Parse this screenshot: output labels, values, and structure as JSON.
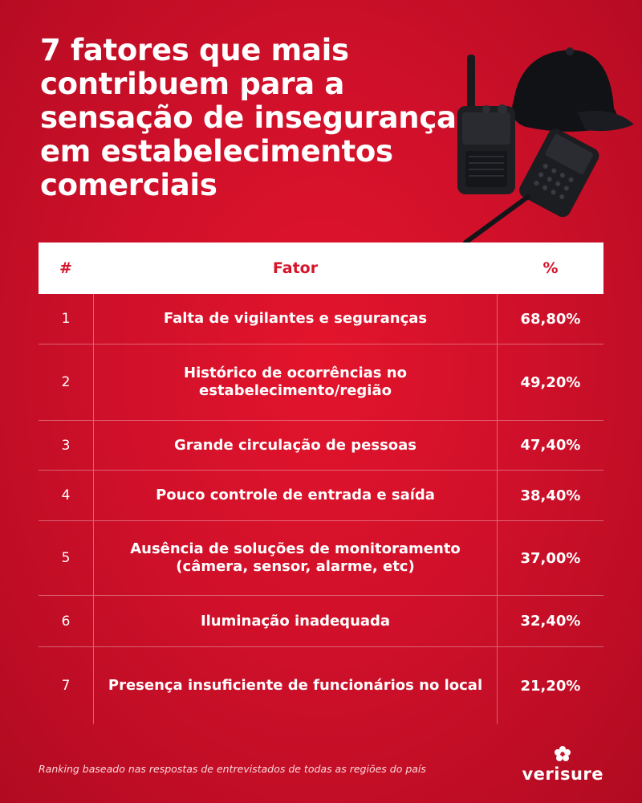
{
  "title": "7 fatores que mais contribuem para a sensação de insegurança em estabelecimentos comerciais",
  "table": {
    "headers": {
      "rank": "#",
      "factor": "Fator",
      "pct": "%"
    }
  },
  "chart_data": {
    "type": "table",
    "title": "7 fatores que mais contribuem para a sensação de insegurança em estabelecimentos comerciais",
    "columns": [
      "#",
      "Fator",
      "%"
    ],
    "rows": [
      {
        "rank": "1",
        "factor": "Falta de vigilantes e seguranças",
        "pct": "68,80%"
      },
      {
        "rank": "2",
        "factor": "Histórico de ocorrências no estabelecimento/região",
        "pct": "49,20%"
      },
      {
        "rank": "3",
        "factor": "Grande circulação de pessoas",
        "pct": "47,40%"
      },
      {
        "rank": "4",
        "factor": "Pouco controle de entrada e saída",
        "pct": "38,40%"
      },
      {
        "rank": "5",
        "factor": "Ausência de soluções de monitoramento (câmera, sensor, alarme, etc)",
        "pct": "37,00%"
      },
      {
        "rank": "6",
        "factor": "Iluminação inadequada",
        "pct": "32,40%"
      },
      {
        "rank": "7",
        "factor": "Presença insuficiente de funcionários no local",
        "pct": "21,20%"
      }
    ]
  },
  "footnote": "Ranking baseado nas respostas de entrevistados de todas as regiões do país",
  "brand": {
    "name": "verisure",
    "icon": "verisure-flower-icon"
  },
  "illustration": {
    "icon": "walkie-talkie-and-cap-icon"
  },
  "colors": {
    "background": "#d0102a",
    "header_text": "#d4152b",
    "header_bg": "#ffffff"
  }
}
